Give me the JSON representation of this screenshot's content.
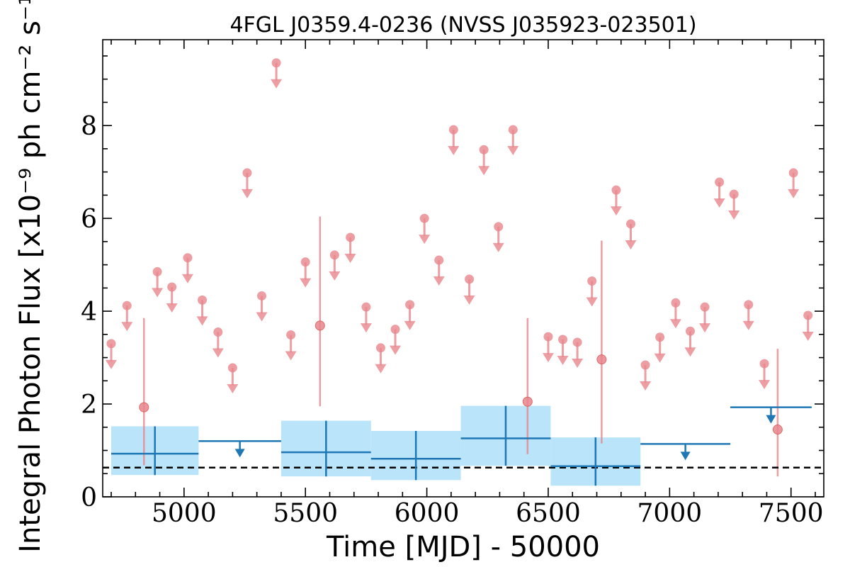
{
  "chart_data": {
    "type": "scatter",
    "title": "4FGL J0359.4-0236 (NVSS J035923-023501)",
    "xlabel": "Time [MJD] - 50000",
    "ylabel": "Integral Photon Flux [x10⁻⁹ ph cm⁻² s⁻¹]",
    "xlim": [
      4665,
      7635
    ],
    "ylim": [
      0,
      9.85
    ],
    "xticks": [
      5000,
      5500,
      6000,
      6500,
      7000,
      7500
    ],
    "yticks": [
      0,
      2,
      4,
      6,
      8
    ],
    "grid": false,
    "baseline": 0.63,
    "colors": {
      "short_bins": "#e8868c",
      "long_bins": "#1f77b4",
      "long_band": "#b9e4fa",
      "baseline": "#000000"
    },
    "short_bin_upper_limits": {
      "x": [
        4700,
        4765,
        4890,
        4950,
        5015,
        5075,
        5140,
        5200,
        5260,
        5320,
        5380,
        5440,
        5500,
        5620,
        5685,
        5750,
        5810,
        5870,
        5930,
        5990,
        6050,
        6110,
        6175,
        6235,
        6295,
        6355,
        6500,
        6560,
        6620,
        6680,
        6780,
        6840,
        6900,
        6960,
        7025,
        7085,
        7145,
        7205,
        7265,
        7325,
        7390,
        7510,
        7570
      ],
      "y": [
        3.3,
        4.12,
        4.85,
        4.52,
        5.15,
        4.24,
        3.55,
        2.78,
        6.98,
        4.33,
        9.35,
        3.49,
        5.06,
        5.21,
        5.59,
        4.09,
        3.21,
        3.61,
        4.14,
        6.0,
        5.1,
        7.91,
        4.69,
        7.48,
        5.82,
        7.91,
        3.45,
        3.39,
        3.33,
        4.65,
        6.61,
        5.88,
        2.84,
        3.44,
        4.18,
        3.57,
        4.09,
        6.78,
        6.52,
        4.14,
        2.87,
        6.98,
        3.91
      ]
    },
    "short_bin_detections": {
      "x": [
        4835,
        5560,
        6415,
        6720,
        7445
      ],
      "y": [
        1.93,
        3.69,
        2.05,
        2.96,
        1.45
      ],
      "y_low": [
        0.68,
        1.95,
        0.92,
        1.15,
        0.44
      ],
      "y_high": [
        3.85,
        6.04,
        3.85,
        5.52,
        3.19
      ]
    },
    "long_bin_detections": {
      "x_start": [
        4700,
        5400,
        5770,
        6140,
        6510
      ],
      "x_end": [
        5060,
        5770,
        6140,
        6510,
        6880
      ],
      "y": [
        0.93,
        0.96,
        0.82,
        1.26,
        0.66
      ],
      "y_low": [
        0.47,
        0.44,
        0.36,
        0.67,
        0.24
      ],
      "y_high": [
        1.52,
        1.64,
        1.42,
        1.96,
        1.28
      ]
    },
    "long_bin_upper_limits": {
      "x_start": [
        5060,
        6880,
        7250
      ],
      "x_end": [
        5400,
        7250,
        7585
      ],
      "y": [
        1.2,
        1.14,
        1.93
      ]
    }
  }
}
